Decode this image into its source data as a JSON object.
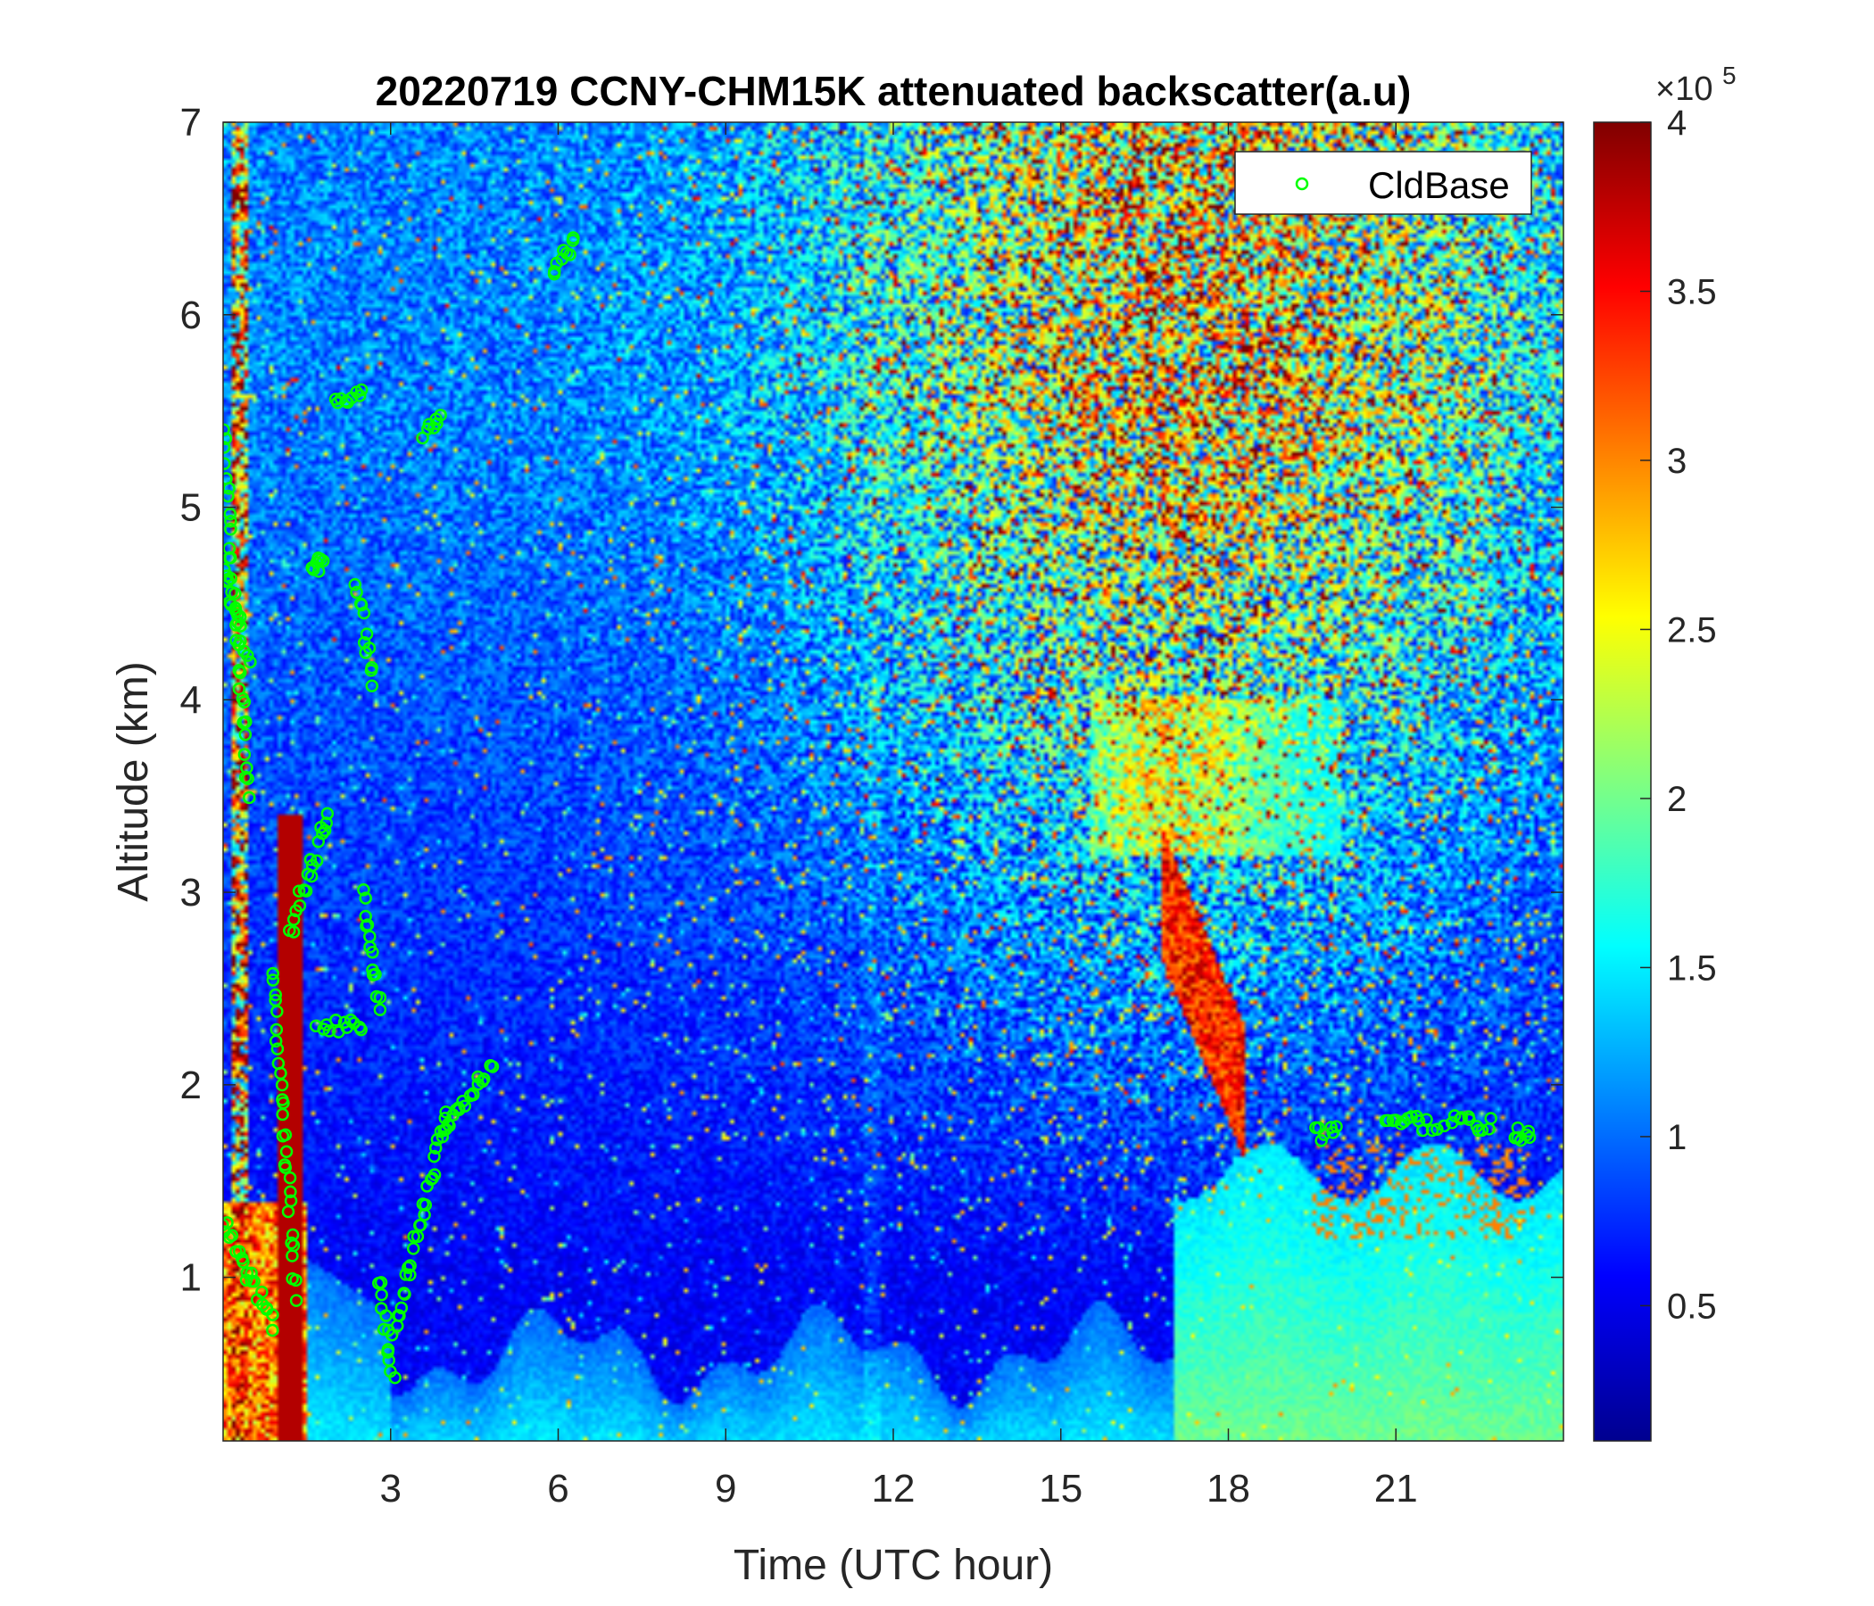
{
  "chart_data": {
    "type": "heatmap",
    "title": "20220719 CCNY-CHM15K attenuated backscatter(a.u)",
    "xlabel": "Time (UTC hour)",
    "ylabel": "Altitude (km)",
    "xlim": [
      0,
      24
    ],
    "ylim": [
      0.15,
      7
    ],
    "xticks": [
      3,
      6,
      9,
      12,
      15,
      18,
      21
    ],
    "yticks": [
      1,
      2,
      3,
      4,
      5,
      6,
      7
    ],
    "grid": false,
    "colormap": "jet",
    "colorbar": {
      "min": 0.1,
      "max": 4,
      "ticks": [
        0.5,
        1,
        1.5,
        2,
        2.5,
        3,
        3.5,
        4
      ],
      "tick_labels": [
        "0.5",
        "1",
        "1.5",
        "2",
        "2.5",
        "3",
        "3.5",
        "4"
      ],
      "exponent_base": "×10",
      "exponent_power": "5"
    },
    "legend": {
      "position": "top-right",
      "entries": [
        "CldBase"
      ]
    },
    "cloud_base_color": "#00ff00",
    "cloud_base_clusters": [
      {
        "t_start": 0.0,
        "t_end": 0.45,
        "alt_start": 5.4,
        "alt_end": 3.5
      },
      {
        "t_start": 0.0,
        "t_end": 0.45,
        "alt_start": 4.7,
        "alt_end": 4.2
      },
      {
        "t_start": 0.0,
        "t_end": 0.9,
        "alt_start": 1.3,
        "alt_end": 0.75
      },
      {
        "t_start": 0.9,
        "t_end": 1.3,
        "alt_start": 2.6,
        "alt_end": 0.9
      },
      {
        "t_start": 1.2,
        "t_end": 1.9,
        "alt_start": 2.8,
        "alt_end": 3.4
      },
      {
        "t_start": 1.6,
        "t_end": 1.8,
        "alt_start": 4.65,
        "alt_end": 4.75
      },
      {
        "t_start": 1.7,
        "t_end": 2.5,
        "alt_start": 2.3,
        "alt_end": 2.3
      },
      {
        "t_start": 2.0,
        "t_end": 2.5,
        "alt_start": 5.55,
        "alt_end": 5.6
      },
      {
        "t_start": 2.4,
        "t_end": 2.7,
        "alt_start": 4.6,
        "alt_end": 4.1
      },
      {
        "t_start": 2.5,
        "t_end": 2.8,
        "alt_start": 3.0,
        "alt_end": 2.4
      },
      {
        "t_start": 2.8,
        "t_end": 3.05,
        "alt_start": 1.0,
        "alt_end": 0.45
      },
      {
        "t_start": 3.05,
        "t_end": 4.0,
        "alt_start": 0.7,
        "alt_end": 1.85
      },
      {
        "t_start": 3.6,
        "t_end": 3.9,
        "alt_start": 5.4,
        "alt_end": 5.5
      },
      {
        "t_start": 3.9,
        "t_end": 4.8,
        "alt_start": 1.75,
        "alt_end": 2.1
      },
      {
        "t_start": 5.9,
        "t_end": 6.3,
        "alt_start": 6.2,
        "alt_end": 6.4
      },
      {
        "t_start": 19.6,
        "t_end": 19.9,
        "alt_start": 1.75,
        "alt_end": 1.75
      },
      {
        "t_start": 20.8,
        "t_end": 21.7,
        "alt_start": 1.8,
        "alt_end": 1.8
      },
      {
        "t_start": 21.9,
        "t_end": 22.7,
        "alt_start": 1.8,
        "alt_end": 1.8
      },
      {
        "t_start": 23.1,
        "t_end": 23.4,
        "alt_start": 1.75,
        "alt_end": 1.75
      }
    ]
  }
}
